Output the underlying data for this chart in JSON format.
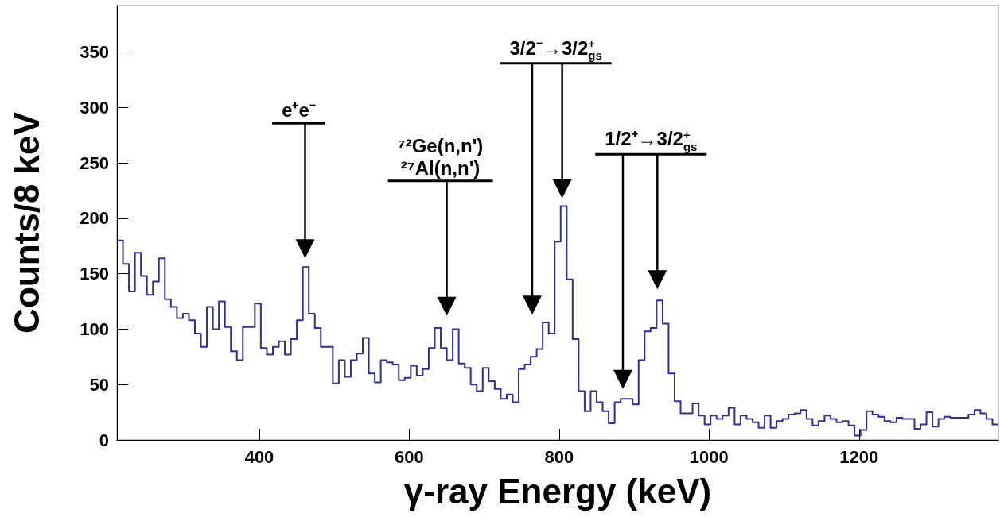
{
  "chart_data": {
    "type": "histogram",
    "xlabel": "γ-ray Energy (keV)",
    "ylabel": "Counts/8 keV",
    "color": "#30308a",
    "bins": [
      210,
      218,
      226,
      234,
      242,
      250,
      258,
      266,
      274,
      282,
      290,
      298,
      306,
      314,
      322,
      330,
      338,
      346,
      354,
      362,
      370,
      378,
      386,
      394,
      402,
      410,
      418,
      426,
      434,
      442,
      450,
      458,
      466,
      474,
      482,
      490,
      498,
      506,
      514,
      522,
      530,
      538,
      546,
      554,
      562,
      570,
      578,
      586,
      594,
      602,
      610,
      618,
      626,
      634,
      642,
      650,
      658,
      666,
      674,
      682,
      690,
      698,
      706,
      714,
      722,
      730,
      738,
      746,
      754,
      762,
      770,
      778,
      786,
      794,
      802,
      810,
      818,
      826,
      834,
      842,
      850,
      858,
      866,
      874,
      882,
      890,
      898,
      906,
      914,
      922,
      930,
      938,
      946,
      954,
      962,
      970,
      978,
      986,
      994,
      1002,
      1010,
      1018,
      1026,
      1034,
      1042,
      1050,
      1058,
      1066,
      1074,
      1082,
      1090,
      1098,
      1106,
      1114,
      1122,
      1130,
      1138,
      1146,
      1154,
      1162,
      1170,
      1178,
      1186,
      1194,
      1202,
      1210,
      1218,
      1226,
      1234,
      1242,
      1250,
      1258,
      1266,
      1274,
      1282,
      1290,
      1298,
      1306,
      1314,
      1322,
      1330,
      1338,
      1346,
      1354,
      1362,
      1370,
      1378,
      1386
    ],
    "values": [
      180,
      159,
      134,
      169,
      148,
      131,
      143,
      164,
      127,
      120,
      110,
      114,
      108,
      96,
      84,
      120,
      100,
      125,
      102,
      80,
      72,
      102,
      102,
      123,
      83,
      77,
      84,
      89,
      77,
      91,
      108,
      156,
      114,
      101,
      84,
      84,
      51,
      72,
      57,
      72,
      78,
      92,
      60,
      52,
      72,
      70,
      68,
      54,
      56,
      67,
      58,
      64,
      83,
      101,
      83,
      72,
      100,
      69,
      65,
      50,
      44,
      65,
      53,
      46,
      37,
      41,
      34,
      64,
      68,
      75,
      82,
      106,
      96,
      179,
      211,
      145,
      91,
      44,
      26,
      44,
      34,
      26,
      15,
      34,
      37,
      37,
      32,
      72,
      98,
      101,
      126,
      105,
      60,
      35,
      24,
      24,
      33,
      22,
      14,
      22,
      19,
      22,
      29,
      14,
      22,
      19,
      16,
      11,
      22,
      11,
      17,
      19,
      23,
      24,
      27,
      19,
      13,
      17,
      22,
      19,
      16,
      17,
      13,
      4,
      9,
      26,
      23,
      21,
      17,
      16,
      20,
      19,
      19,
      10,
      14,
      25,
      12,
      19,
      21,
      20,
      20,
      20,
      23,
      27,
      24,
      19,
      14
    ],
    "xlim": [
      210,
      1386
    ],
    "xticks": [
      400,
      600,
      800,
      1000,
      1200
    ],
    "ylim": [
      0,
      392
    ],
    "yticks": [
      0,
      50,
      100,
      150,
      200,
      250,
      300,
      350
    ],
    "annotations": [
      "e⁺e⁻",
      "⁷²Ge(n,n')\n²⁷Al(n,n')",
      "3/2⁻→3/2$^{+}$$_{gs}$",
      "1/2⁺→3/2$^{+}$$_{gs}$"
    ]
  }
}
